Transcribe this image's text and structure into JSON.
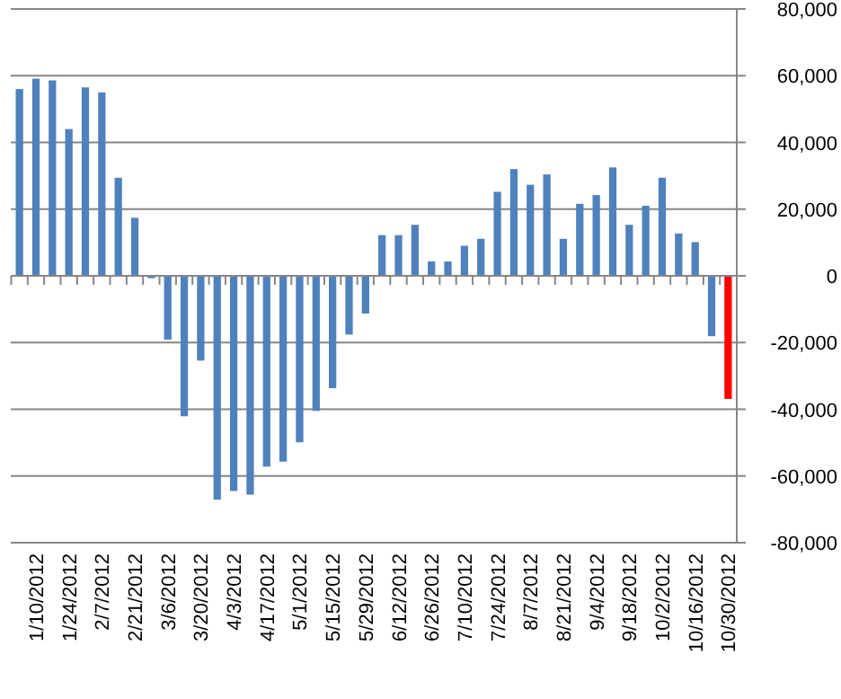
{
  "chart_data": {
    "type": "bar",
    "categories": [
      null,
      "1/10/2012",
      null,
      "1/24/2012",
      null,
      "2/7/2012",
      null,
      "2/21/2012",
      null,
      "3/6/2012",
      null,
      "3/20/2012",
      null,
      "4/3/2012",
      null,
      "4/17/2012",
      null,
      "5/1/2012",
      null,
      "5/15/2012",
      null,
      "5/29/2012",
      null,
      "6/12/2012",
      null,
      "6/26/2012",
      null,
      "7/10/2012",
      null,
      "7/24/2012",
      null,
      "8/7/2012",
      null,
      "8/21/2012",
      null,
      "9/4/2012",
      null,
      "9/18/2012",
      null,
      "10/2/2012",
      null,
      "10/16/2012",
      null,
      "10/30/2012"
    ],
    "values": [
      56000,
      59100,
      58600,
      44000,
      56500,
      55000,
      29400,
      17400,
      -700,
      -19100,
      -42100,
      -25400,
      -67100,
      -64500,
      -65600,
      -57200,
      -55700,
      -49900,
      -40500,
      -33700,
      -17600,
      -11300,
      12200,
      12200,
      15300,
      4300,
      4300,
      9000,
      11100,
      25200,
      32000,
      27300,
      30400,
      11100,
      21600,
      24200,
      32500,
      15300,
      21000,
      29400,
      12700,
      10100,
      -18100,
      -36900
    ],
    "colors": [
      "#4f81bd",
      "#4f81bd",
      "#4f81bd",
      "#4f81bd",
      "#4f81bd",
      "#4f81bd",
      "#4f81bd",
      "#4f81bd",
      "#4f81bd",
      "#4f81bd",
      "#4f81bd",
      "#4f81bd",
      "#4f81bd",
      "#4f81bd",
      "#4f81bd",
      "#4f81bd",
      "#4f81bd",
      "#4f81bd",
      "#4f81bd",
      "#4f81bd",
      "#4f81bd",
      "#4f81bd",
      "#4f81bd",
      "#4f81bd",
      "#4f81bd",
      "#4f81bd",
      "#4f81bd",
      "#4f81bd",
      "#4f81bd",
      "#4f81bd",
      "#4f81bd",
      "#4f81bd",
      "#4f81bd",
      "#4f81bd",
      "#4f81bd",
      "#4f81bd",
      "#4f81bd",
      "#4f81bd",
      "#4f81bd",
      "#4f81bd",
      "#4f81bd",
      "#4f81bd",
      "#4f81bd",
      "#ff0000"
    ],
    "ylim": [
      -80000,
      80000
    ],
    "yticks": [
      {
        "value": -80000,
        "label": "-80,000"
      },
      {
        "value": -60000,
        "label": "-60,000"
      },
      {
        "value": -40000,
        "label": "-40,000"
      },
      {
        "value": -20000,
        "label": "-20,000"
      },
      0,
      {
        "value": 20000,
        "label": "20,000"
      },
      {
        "value": 40000,
        "label": "40,000"
      },
      {
        "value": 60000,
        "label": "60,000"
      },
      {
        "value": 80000,
        "label": "80,000"
      }
    ],
    "grid": "y"
  }
}
